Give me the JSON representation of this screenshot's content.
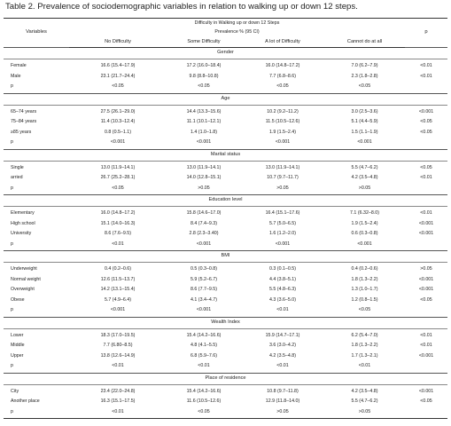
{
  "caption": "Table 2. Prevalence of sociodemographic variables in relation to walking up or down 12 steps.",
  "header": {
    "variables": "Variables",
    "span_title": "Difficulty in Walking up or down 12 Steps",
    "span_subtitle": "Prevalence % (95 CI)",
    "p": "p",
    "columns": [
      "No Difficulty",
      "Some Difficulty",
      "A lot of Difficulty",
      "Cannot do at all"
    ]
  },
  "sections": [
    {
      "title": "Gender",
      "rows": [
        {
          "label": "Female",
          "values": [
            "16.6 (15.4–17.9)",
            "17.2 (16.0–18.4)",
            "16.0 (14.8–17.2)",
            "7.0 (6.2–7.9)"
          ],
          "p": "<0.01"
        },
        {
          "label": "Male",
          "values": [
            "23.1 (21.7–24.4)",
            "9.8 (8.8–10.8)",
            "7.7 (6.8–8.6)",
            "2.3 (1.8–2.8)"
          ],
          "p": "<0.01"
        },
        {
          "label": "p",
          "values": [
            "<0.05",
            "<0.05",
            "<0.05",
            "<0.05"
          ],
          "p": ""
        }
      ]
    },
    {
      "title": "Age",
      "rows": [
        {
          "label": "65–74 years",
          "values": [
            "27.5 (26.1–29.0)",
            "14.4 (13.3–15.6)",
            "10.2 (9.2–11.2)",
            "3.0 (2.5–3.6)"
          ],
          "p": "<0.001"
        },
        {
          "label": "75–84 years",
          "values": [
            "11.4 (10.3–12.4)",
            "11.1 (10.1–12.1)",
            "11.5 (10.5–12.6)",
            "5.1 (4.4–5.9)"
          ],
          "p": "<0.05"
        },
        {
          "label": "≥85 years",
          "values": [
            "0.8 (0.5–1.1)",
            "1.4 (1.0–1.8)",
            "1.9 (1.5–2.4)",
            "1.5 (1.1–1.9)"
          ],
          "p": "<0.05"
        },
        {
          "label": "p",
          "values": [
            "<0.001",
            "<0.001",
            "<0.001",
            "<0.001"
          ],
          "p": ""
        }
      ]
    },
    {
      "title": "Marital status",
      "rows": [
        {
          "label": "Single",
          "values": [
            "13.0 (11.9–14.1)",
            "13.0 (11.9–14.1)",
            "13.0 (11.9–14.1)",
            "5.5 (4.7–6.2)"
          ],
          "p": "<0.05"
        },
        {
          "label": "arried",
          "values": [
            "26.7 (25.2–28.1)",
            "14.0 (12.8–15.1)",
            "10.7 (9.7–11.7)",
            "4.2 (3.5–4.8)"
          ],
          "p": "<0.01"
        },
        {
          "label": "p",
          "values": [
            "<0.05",
            ">0.05",
            ">0.05",
            ">0.05"
          ],
          "p": ""
        }
      ]
    },
    {
      "title": "Education level",
      "rows": [
        {
          "label": "Elementary",
          "values": [
            "16.0 (14.8–17.2)",
            "15.8 (14.6–17.0)",
            "16.4 (15.1–17.6)",
            "7.1 (6.32–8.0)"
          ],
          "p": "<0.01"
        },
        {
          "label": "High school",
          "values": [
            "15.1 (14.0–16.3)",
            "8.4 (7.4–9.3)",
            "5.7 (5.0–6.5)",
            "1.9 (1.5–2.4)"
          ],
          "p": "<0.001"
        },
        {
          "label": "University",
          "values": [
            "8.6 (7.6–9.5)",
            "2.8 (2.3–3.40)",
            "1.6 (1.2–2.0)",
            "0.6 (0.3–0.8)"
          ],
          "p": "<0.001"
        },
        {
          "label": "p",
          "values": [
            "<0.01",
            "<0.001",
            "<0.001",
            "<0.001"
          ],
          "p": ""
        }
      ]
    },
    {
      "title": "BMI",
      "rows": [
        {
          "label": "Underweight",
          "values": [
            "0.4 (0.2–0.6)",
            "0.5 (0.3–0.8)",
            "0.3 (0.1–0.5)",
            "0.4 (0.2–0.6)"
          ],
          "p": ">0.05"
        },
        {
          "label": "Normal weight",
          "values": [
            "12.6 (11.5–13.7)",
            "5.9 (5.2–6.7)",
            "4.4 (3.8–5.1)",
            "1.8 (1.3–2.2)"
          ],
          "p": "<0.001"
        },
        {
          "label": "Overweight",
          "values": [
            "14.2 (13.1–15.4)",
            "8.6 (7.7–9.5)",
            "5.5 (4.8–6.3)",
            "1.3 (1.0–1.7)"
          ],
          "p": "<0.001"
        },
        {
          "label": "Obese",
          "values": [
            "5.7 (4.9–6.4)",
            "4.1 (3.4–4.7)",
            "4.3 (3.6–5.0)",
            "1.2 (0.8–1.5)"
          ],
          "p": "<0.05"
        },
        {
          "label": "p",
          "values": [
            "<0.001",
            "<0.001",
            "<0.01",
            "<0.05"
          ],
          "p": ""
        }
      ]
    },
    {
      "title": "Wealth Index",
      "rows": [
        {
          "label": "Lower",
          "values": [
            "18.3 (17.0–19.5)",
            "15.4 (14.2–16.6)",
            "15.9 (14.7–17.1)",
            "6.2 (5.4–7.0)"
          ],
          "p": "<0.01"
        },
        {
          "label": "Middle",
          "values": [
            "7.7 (6.80–8.5)",
            "4.8 (4.1–5.5)",
            "3.6 (3.0–4.2)",
            "1.8 (1.3–2.2)"
          ],
          "p": "<0.01"
        },
        {
          "label": "Upper",
          "values": [
            "13.8 (12.6–14.9)",
            "6.8 (5.9–7.6)",
            "4.2 (3.5–4.8)",
            "1.7 (1.3–2.1)"
          ],
          "p": "<0.001"
        },
        {
          "label": "p",
          "values": [
            "<0.01",
            "<0.01",
            "<0.01",
            "<0.01"
          ],
          "p": ""
        }
      ]
    },
    {
      "title": "Place of residence",
      "rows": [
        {
          "label": "City",
          "values": [
            "23.4 (22.0–24.8)",
            "15.4 (14.2–16.6)",
            "10.8 (9.7–11.8)",
            "4.2 (3.5–4.8)"
          ],
          "p": "<0.001"
        },
        {
          "label": "Another place",
          "values": [
            "16.3 (15.1–17.5)",
            "11.6 (10.5–12.6)",
            "12.9 (11.8–14.0)",
            "5.5 (4.7–6.2)"
          ],
          "p": "<0.05"
        },
        {
          "label": "p",
          "values": [
            "<0.01",
            "<0.05",
            ">0.05",
            ">0.05"
          ],
          "p": ""
        }
      ]
    }
  ]
}
